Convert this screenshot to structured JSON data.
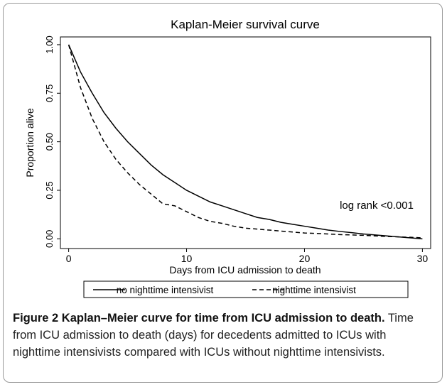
{
  "chart_data": {
    "type": "line",
    "title": "Kaplan-Meier survival curve",
    "x_label": "Days from ICU admission to death",
    "y_label": "Proportion alive",
    "annotation": "log rank <0.001",
    "x": [
      0,
      1,
      2,
      3,
      4,
      5,
      6,
      7,
      8,
      9,
      10,
      11,
      12,
      13,
      14,
      15,
      16,
      17,
      18,
      19,
      20,
      21,
      22,
      23,
      24,
      25,
      26,
      27,
      28,
      29,
      30
    ],
    "series": [
      {
        "name": "no nighttime intensivist",
        "color": "#000000",
        "line_style": "solid",
        "values": [
          1.0,
          0.86,
          0.75,
          0.65,
          0.57,
          0.5,
          0.44,
          0.38,
          0.33,
          0.29,
          0.25,
          0.22,
          0.19,
          0.17,
          0.15,
          0.13,
          0.11,
          0.1,
          0.085,
          0.075,
          0.065,
          0.055,
          0.045,
          0.038,
          0.032,
          0.025,
          0.02,
          0.015,
          0.01,
          0.005,
          0.0
        ]
      },
      {
        "name": "nighttime intensivist",
        "color": "#000000",
        "line_style": "dashed",
        "values": [
          1.0,
          0.78,
          0.62,
          0.5,
          0.41,
          0.34,
          0.28,
          0.23,
          0.18,
          0.17,
          0.14,
          0.11,
          0.09,
          0.08,
          0.065,
          0.055,
          0.05,
          0.045,
          0.04,
          0.035,
          0.03,
          0.028,
          0.025,
          0.022,
          0.02,
          0.018,
          0.015,
          0.012,
          0.01,
          0.008,
          0.005
        ]
      }
    ],
    "xlim": [
      -0.7,
      30.7
    ],
    "ylim": [
      -0.05,
      1.04
    ],
    "xticks": [
      0,
      10,
      20,
      30
    ],
    "yticks": [
      {
        "value": 0,
        "label": "0.00"
      },
      0.25,
      {
        "value": 0.5,
        "label": "0.50"
      },
      0.75,
      {
        "value": 1,
        "label": "1.00"
      }
    ],
    "grid": false,
    "legend": "bottom"
  },
  "caption": {
    "label": "Figure 2",
    "title": "Kaplan–Meier curve for time from ICU admission to death.",
    "text": "Time from ICU admission to death (days) for decedents admitted to ICUs with nighttime intensivists compared with ICUs without nighttime intensivists."
  }
}
